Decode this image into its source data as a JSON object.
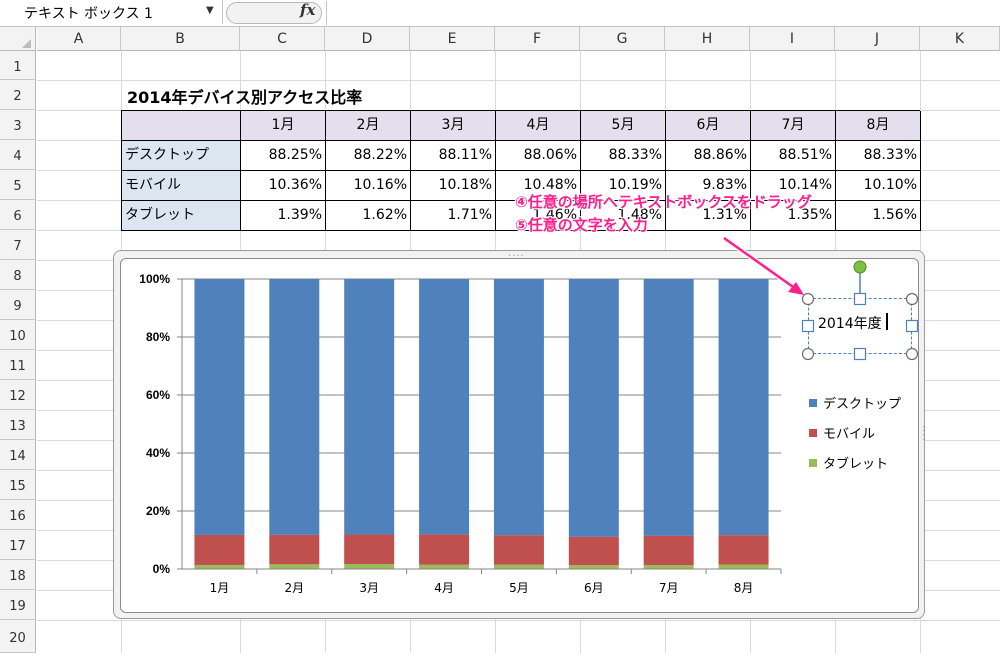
{
  "formula_bar": {
    "name_box": "テキスト ボックス 1",
    "fx_label": "fx",
    "formula": ""
  },
  "columns": [
    "A",
    "B",
    "C",
    "D",
    "E",
    "F",
    "G",
    "H",
    "I",
    "J",
    "K"
  ],
  "rows": [
    "1",
    "2",
    "3",
    "4",
    "5",
    "6",
    "7",
    "8",
    "9",
    "10",
    "11",
    "12",
    "13",
    "14",
    "15",
    "16",
    "17",
    "18",
    "19",
    "20"
  ],
  "sheet": {
    "title": "2014年デバイス別アクセス比率",
    "months": [
      "1月",
      "2月",
      "3月",
      "4月",
      "5月",
      "6月",
      "7月",
      "8月"
    ],
    "table": [
      {
        "label": "デスクトップ",
        "values": [
          "88.25%",
          "88.22%",
          "88.11%",
          "88.06%",
          "88.33%",
          "88.86%",
          "88.51%",
          "88.33%"
        ]
      },
      {
        "label": "モバイル",
        "values": [
          "10.36%",
          "10.16%",
          "10.18%",
          "10.48%",
          "10.19%",
          "9.83%",
          "10.14%",
          "10.10%"
        ]
      },
      {
        "label": "タブレット",
        "values": [
          "1.39%",
          "1.62%",
          "1.71%",
          "1.46%",
          "1.48%",
          "1.31%",
          "1.35%",
          "1.56%"
        ]
      }
    ]
  },
  "chart_data": {
    "type": "bar",
    "stacked": "percent",
    "categories": [
      "1月",
      "2月",
      "3月",
      "4月",
      "5月",
      "6月",
      "7月",
      "8月"
    ],
    "series": [
      {
        "name": "タブレット",
        "color": "#9bbb59",
        "values": [
          1.39,
          1.62,
          1.71,
          1.46,
          1.48,
          1.31,
          1.35,
          1.56
        ]
      },
      {
        "name": "モバイル",
        "color": "#c0504d",
        "values": [
          10.36,
          10.16,
          10.18,
          10.48,
          10.19,
          9.83,
          10.14,
          10.1
        ]
      },
      {
        "name": "デスクトップ",
        "color": "#4f81bd",
        "values": [
          88.25,
          88.22,
          88.11,
          88.06,
          88.33,
          88.86,
          88.51,
          88.33
        ]
      }
    ],
    "yticks": [
      "0%",
      "20%",
      "40%",
      "60%",
      "80%",
      "100%"
    ],
    "ylim": [
      0,
      100
    ],
    "legend": [
      "デスクトップ",
      "モバイル",
      "タブレット"
    ],
    "legend_position": "right",
    "grid": true
  },
  "text_box": {
    "text": "2014年度"
  },
  "annotations": {
    "step4": "④任意の場所へテキストボックスをドラッグ",
    "step5": "⑤任意の文字を入力"
  }
}
